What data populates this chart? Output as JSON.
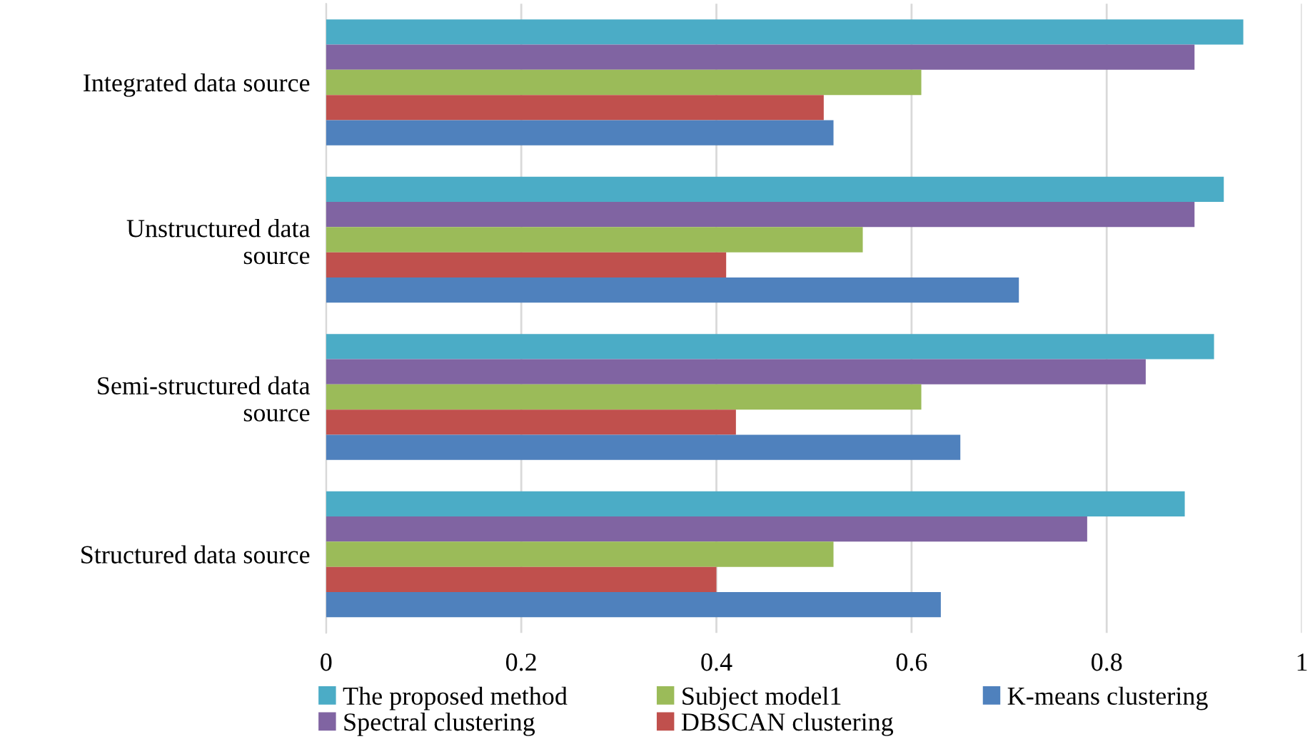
{
  "chart_data": {
    "type": "bar",
    "orientation": "horizontal",
    "categories": [
      "Integrated data source",
      "Unstructured data\nsource",
      "Semi-structured data\nsource",
      "Structured data source"
    ],
    "series": [
      {
        "name": "The proposed method",
        "color": "#4bacc6",
        "values": [
          0.94,
          0.92,
          0.91,
          0.88
        ]
      },
      {
        "name": "Spectral clustering",
        "color": "#8064a2",
        "values": [
          0.89,
          0.89,
          0.84,
          0.78
        ]
      },
      {
        "name": "Subject model1",
        "color": "#9bbb59",
        "values": [
          0.61,
          0.55,
          0.61,
          0.52
        ]
      },
      {
        "name": "DBSCAN clustering",
        "color": "#c0504d",
        "values": [
          0.51,
          0.41,
          0.42,
          0.4
        ]
      },
      {
        "name": "K-means clustering",
        "color": "#4f81bd",
        "values": [
          0.52,
          0.71,
          0.65,
          0.63
        ]
      }
    ],
    "xlim": [
      0,
      1
    ],
    "xticks": [
      0,
      0.2,
      0.4,
      0.6,
      0.8,
      1
    ],
    "grid": "x",
    "legend": "bottom"
  }
}
